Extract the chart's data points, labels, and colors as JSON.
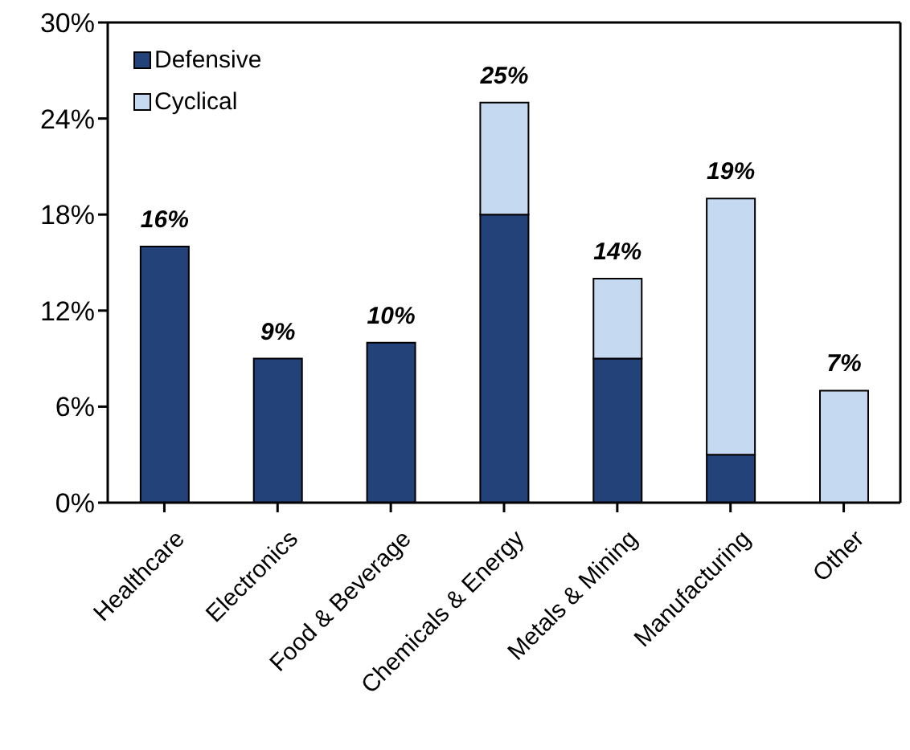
{
  "chart_data": {
    "type": "bar",
    "stacked": true,
    "categories": [
      "Healthcare",
      "Electronics",
      "Food & Beverage",
      "Chemicals & Energy",
      "Metals & Mining",
      "Manufacturing",
      "Other"
    ],
    "series": [
      {
        "name": "Defensive",
        "color": "#23427a",
        "values": [
          16,
          9,
          10,
          18,
          9,
          3,
          0
        ]
      },
      {
        "name": "Cyclical",
        "color": "#c5d9f1",
        "values": [
          0,
          0,
          0,
          7,
          5,
          16,
          7
        ]
      }
    ],
    "totals": [
      "16%",
      "9%",
      "10%",
      "25%",
      "14%",
      "19%",
      "7%"
    ],
    "ylim": [
      0,
      30
    ],
    "yticks": [
      {
        "value": 0,
        "label": "0%"
      },
      {
        "value": 6,
        "label": "6%"
      },
      {
        "value": 12,
        "label": "12%"
      },
      {
        "value": 18,
        "label": "18%"
      },
      {
        "value": 24,
        "label": "24%"
      },
      {
        "value": 30,
        "label": "30%"
      }
    ],
    "legend": "top left",
    "grid": false
  }
}
